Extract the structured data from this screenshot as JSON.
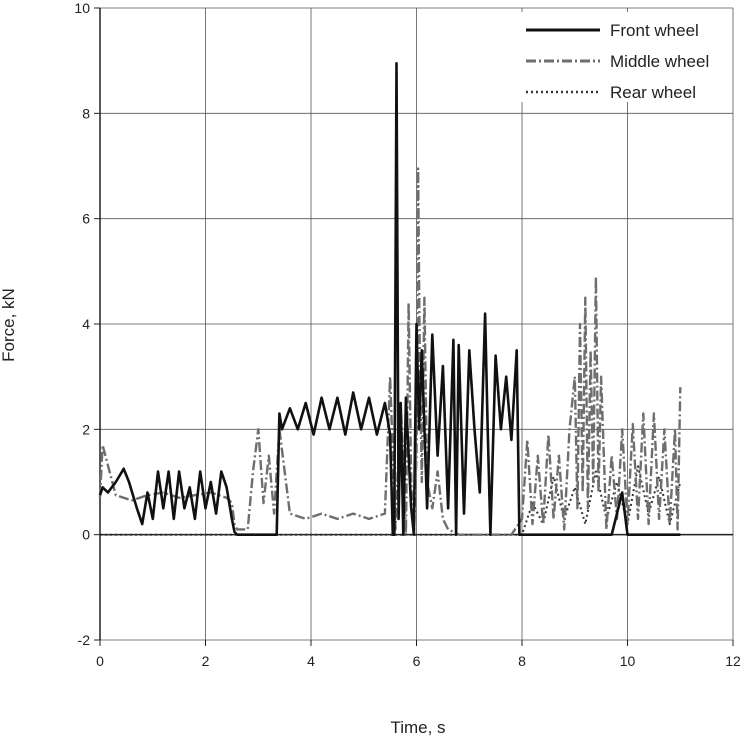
{
  "chart_data": {
    "type": "line",
    "title": "",
    "xlabel": "Time, s",
    "ylabel": "Force, kN",
    "xlim": [
      0,
      12
    ],
    "ylim": [
      -2,
      10
    ],
    "xticks": [
      0,
      2,
      4,
      6,
      8,
      10,
      12
    ],
    "yticks": [
      -2,
      0,
      2,
      4,
      6,
      8,
      10
    ],
    "grid": true,
    "legend_position": "top-right",
    "series": [
      {
        "name": "Front wheel",
        "style": "solid",
        "color": "#111111",
        "x": [
          0,
          0.05,
          0.15,
          0.3,
          0.45,
          0.55,
          0.7,
          0.8,
          0.9,
          1.0,
          1.1,
          1.2,
          1.3,
          1.4,
          1.5,
          1.6,
          1.7,
          1.8,
          1.9,
          2.0,
          2.1,
          2.2,
          2.3,
          2.4,
          2.5,
          2.55,
          2.6,
          3.0,
          3.35,
          3.4,
          3.45,
          3.6,
          3.75,
          3.9,
          4.05,
          4.2,
          4.35,
          4.5,
          4.65,
          4.8,
          4.95,
          5.1,
          5.25,
          5.4,
          5.5,
          5.55,
          5.58,
          5.62,
          5.66,
          5.7,
          5.75,
          5.8,
          5.9,
          5.95,
          6.0,
          6.05,
          6.1,
          6.2,
          6.3,
          6.4,
          6.5,
          6.6,
          6.7,
          6.75,
          6.8,
          6.9,
          7.0,
          7.1,
          7.2,
          7.3,
          7.35,
          7.4,
          7.5,
          7.6,
          7.7,
          7.8,
          7.9,
          7.95,
          8.05,
          8.3,
          8.5,
          8.7,
          8.9,
          9.1,
          9.3,
          9.5,
          9.7,
          9.9,
          10.0,
          10.2,
          10.5,
          10.8,
          11.0
        ],
        "y": [
          0.75,
          0.9,
          0.8,
          1.0,
          1.25,
          1.0,
          0.5,
          0.2,
          0.8,
          0.3,
          1.2,
          0.5,
          1.2,
          0.3,
          1.2,
          0.5,
          0.9,
          0.3,
          1.2,
          0.5,
          1.0,
          0.4,
          1.2,
          0.9,
          0.3,
          0.05,
          0,
          0,
          0,
          2.3,
          2.0,
          2.4,
          2.0,
          2.5,
          1.9,
          2.6,
          2.0,
          2.6,
          1.9,
          2.7,
          2.0,
          2.6,
          1.9,
          2.5,
          1.9,
          0,
          0,
          8.95,
          0.3,
          2.5,
          0,
          2.6,
          0.5,
          0,
          4.0,
          2.0,
          3.5,
          0.5,
          3.8,
          1.5,
          3.2,
          0.5,
          3.7,
          0,
          3.6,
          0.4,
          3.5,
          2.0,
          0.8,
          4.2,
          2.0,
          0,
          3.4,
          2.0,
          3.0,
          1.8,
          3.5,
          0,
          0,
          0,
          0,
          0,
          0,
          0,
          0,
          0,
          0,
          0.8,
          0,
          0,
          0,
          0,
          0
        ]
      },
      {
        "name": "Middle wheel",
        "style": "dashdot",
        "color": "#6e6e6e",
        "x": [
          0,
          0.05,
          0.3,
          0.6,
          0.9,
          1.2,
          1.5,
          1.8,
          2.1,
          2.4,
          2.5,
          2.55,
          2.6,
          2.8,
          2.9,
          3.0,
          3.1,
          3.2,
          3.3,
          3.4,
          3.6,
          3.9,
          4.2,
          4.5,
          4.8,
          5.1,
          5.4,
          5.5,
          5.6,
          5.7,
          5.8,
          5.85,
          5.9,
          5.95,
          6.0,
          6.03,
          6.06,
          6.1,
          6.15,
          6.2,
          6.3,
          6.4,
          6.5,
          6.6,
          6.8,
          7.0,
          7.2,
          7.3,
          7.4,
          7.6,
          7.8,
          8.0,
          8.1,
          8.2,
          8.3,
          8.4,
          8.5,
          8.6,
          8.7,
          8.8,
          8.9,
          9.0,
          9.05,
          9.1,
          9.15,
          9.2,
          9.25,
          9.3,
          9.35,
          9.4,
          9.45,
          9.5,
          9.6,
          9.7,
          9.8,
          9.9,
          10.0,
          10.1,
          10.2,
          10.3,
          10.4,
          10.5,
          10.6,
          10.7,
          10.8,
          10.9,
          10.95,
          11.0
        ],
        "y": [
          0.7,
          1.7,
          0.75,
          0.65,
          0.75,
          0.8,
          0.7,
          0.75,
          0.8,
          0.7,
          0.6,
          0.2,
          0.1,
          0.1,
          1.2,
          2.0,
          0.6,
          1.5,
          0.4,
          2.0,
          0.4,
          0.3,
          0.4,
          0.3,
          0.4,
          0.3,
          0.4,
          3.0,
          0.1,
          2.5,
          0,
          4.4,
          1.0,
          0,
          1.5,
          6.95,
          3.5,
          1.0,
          4.5,
          1.0,
          0.5,
          1.2,
          0.3,
          0.1,
          0,
          0,
          0,
          0,
          0,
          0,
          0,
          0.3,
          1.8,
          0.2,
          1.5,
          0.2,
          1.9,
          0.3,
          1.5,
          0.1,
          2.0,
          3.0,
          0.5,
          4.0,
          0.8,
          4.5,
          0.5,
          3.5,
          1.0,
          4.9,
          0.8,
          3.0,
          0.1,
          1.5,
          0.3,
          2.0,
          0.2,
          2.1,
          0.3,
          2.3,
          0.2,
          2.3,
          0.3,
          2.0,
          0.2,
          2.0,
          0.1,
          2.8
        ]
      },
      {
        "name": "Rear wheel",
        "style": "dotted",
        "color": "#333333",
        "x": [
          0,
          0.5,
          1.0,
          1.5,
          2.0,
          2.5,
          2.6,
          3.0,
          4.0,
          5.0,
          5.6,
          6.0,
          6.5,
          7.0,
          7.5,
          8.0,
          8.2,
          8.4,
          8.6,
          8.8,
          9.0,
          9.2,
          9.4,
          9.6,
          9.8,
          10.0,
          10.2,
          10.4,
          10.6,
          10.8,
          11.0
        ],
        "y": [
          0,
          0,
          0,
          0,
          0,
          0,
          0,
          0,
          0,
          0,
          0,
          0,
          0,
          0,
          0,
          0,
          0.6,
          0.2,
          1.1,
          0.3,
          0.9,
          0.2,
          1.2,
          0.3,
          1.0,
          0.2,
          1.3,
          0.4,
          1.1,
          0.2,
          1.0
        ]
      }
    ]
  }
}
